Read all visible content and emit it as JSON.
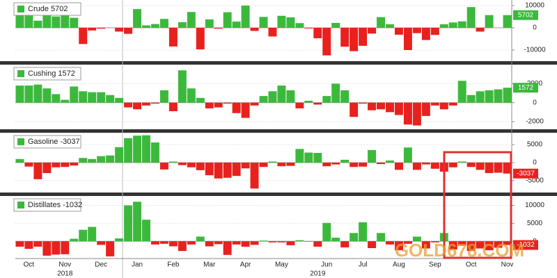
{
  "chart_data": [
    {
      "type": "bar",
      "positive_color": "#3cb93c",
      "negative_color": "#e8211e",
      "series": [
        {
          "name": "Crude",
          "values": [
            6300,
            6500,
            3200,
            5800,
            5100,
            7300,
            4500,
            -7300,
            -1200,
            -400,
            100,
            -1700,
            -2700,
            8400,
            1100,
            1700,
            4000,
            -8400,
            2500,
            7100,
            -9700,
            3800,
            -400,
            7000,
            2800,
            10000,
            -1400,
            4900,
            -3900,
            5400,
            4700,
            2100,
            -300,
            -4700,
            -12400,
            2200,
            -8500,
            -10500,
            -8100,
            -2600,
            4800,
            1600,
            -3100,
            -10000,
            -2400,
            -5500,
            -3200,
            1600,
            2400,
            2900,
            9300,
            -1700,
            5700,
            null,
            5702
          ]
        }
      ],
      "ylim": [
        -15000,
        12500
      ],
      "yticks": [
        10000,
        0,
        -10000
      ],
      "grid": true
    },
    {
      "type": "bar",
      "positive_color": "#3cb93c",
      "negative_color": "#e8211e",
      "series": [
        {
          "name": "Cushing",
          "values": [
            1800,
            1800,
            1900,
            1500,
            900,
            300,
            1700,
            1200,
            1100,
            1100,
            800,
            500,
            -500,
            -700,
            -300,
            -100,
            1300,
            -900,
            3400,
            1500,
            500,
            -600,
            -500,
            -100,
            -1100,
            -1600,
            -300,
            700,
            1200,
            1800,
            1300,
            -600,
            200,
            -200,
            700,
            2000,
            1300,
            -1500,
            -100,
            -800,
            -700,
            -1000,
            -1300,
            -2300,
            -2400,
            -1400,
            -300,
            -700,
            -300,
            2300,
            800,
            1200,
            1300,
            1400,
            1572
          ]
        }
      ],
      "ylim": [
        -2800,
        4000
      ],
      "yticks": [
        2000,
        0,
        -2000
      ],
      "grid": true
    },
    {
      "type": "bar",
      "positive_color": "#3cb93c",
      "negative_color": "#e8211e",
      "series": [
        {
          "name": "Gasoline",
          "values": [
            1000,
            -1100,
            -4600,
            -2900,
            -1300,
            -1200,
            -800,
            1300,
            1000,
            1800,
            2000,
            4300,
            6800,
            7500,
            7600,
            5600,
            -1900,
            300,
            -700,
            -1300,
            -2100,
            -3500,
            -4400,
            -4200,
            -3700,
            -1600,
            -7200,
            -1200,
            300,
            -1000,
            -900,
            3800,
            2800,
            2700,
            -1000,
            -500,
            800,
            -1200,
            -1100,
            3500,
            -400,
            600,
            -2000,
            4200,
            -2000,
            -500,
            -1700,
            -2500,
            -1300,
            300,
            -1200,
            -2000,
            -2900,
            -2800,
            -3037
          ]
        }
      ],
      "ylim": [
        -8300,
        8300
      ],
      "yticks": [
        5000,
        0,
        -5000
      ],
      "grid": true
    },
    {
      "type": "bar",
      "positive_color": "#3cb93c",
      "negative_color": "#e8211e",
      "series": [
        {
          "name": "Distillates",
          "values": [
            -1500,
            -2100,
            -1500,
            -4000,
            -3700,
            -3600,
            700,
            3200,
            4000,
            -1000,
            -4200,
            800,
            10000,
            11000,
            6000,
            -900,
            -700,
            -1400,
            -2700,
            -900,
            1300,
            -1400,
            -800,
            -3800,
            -900,
            -1500,
            -1000,
            200,
            -300,
            -300,
            -1100,
            300,
            -100,
            -1500,
            5100,
            1000,
            -1700,
            2300,
            5300,
            -1900,
            2300,
            -900,
            -2500,
            -700,
            1300,
            -2000,
            -300,
            2300,
            -2300,
            -1200,
            -2700,
            -2000,
            -2500,
            -1800,
            -1032
          ]
        }
      ],
      "ylim": [
        -4800,
        12600
      ],
      "yticks": [
        10000,
        5000,
        0
      ],
      "grid": true,
      "categories": [
        null,
        "Oct",
        null,
        null,
        null,
        "Nov",
        null,
        null,
        null,
        "Dec",
        null,
        null,
        null,
        "Jan",
        null,
        null,
        null,
        "Feb",
        null,
        null,
        null,
        "Mar",
        null,
        null,
        null,
        "Apr",
        null,
        null,
        null,
        "May",
        null,
        null,
        null,
        null,
        "Jun",
        null,
        null,
        null,
        "Jul",
        null,
        null,
        null,
        "Aug",
        null,
        null,
        null,
        "Sep",
        null,
        null,
        null,
        "Oct",
        null,
        null,
        null,
        "Nov"
      ],
      "years": [
        null,
        null,
        null,
        null,
        null,
        "2018",
        null,
        null,
        null,
        null,
        null,
        null,
        null,
        null,
        null,
        null,
        null,
        null,
        null,
        null,
        null,
        null,
        null,
        null,
        null,
        null,
        null,
        null,
        null,
        null,
        null,
        null,
        null,
        "2019",
        null,
        null,
        null,
        null,
        null,
        null,
        null,
        null,
        null,
        null,
        null,
        null,
        null,
        null,
        null,
        null,
        null,
        null,
        null,
        null,
        null
      ]
    }
  ],
  "watermark": "GOLD678.COM"
}
